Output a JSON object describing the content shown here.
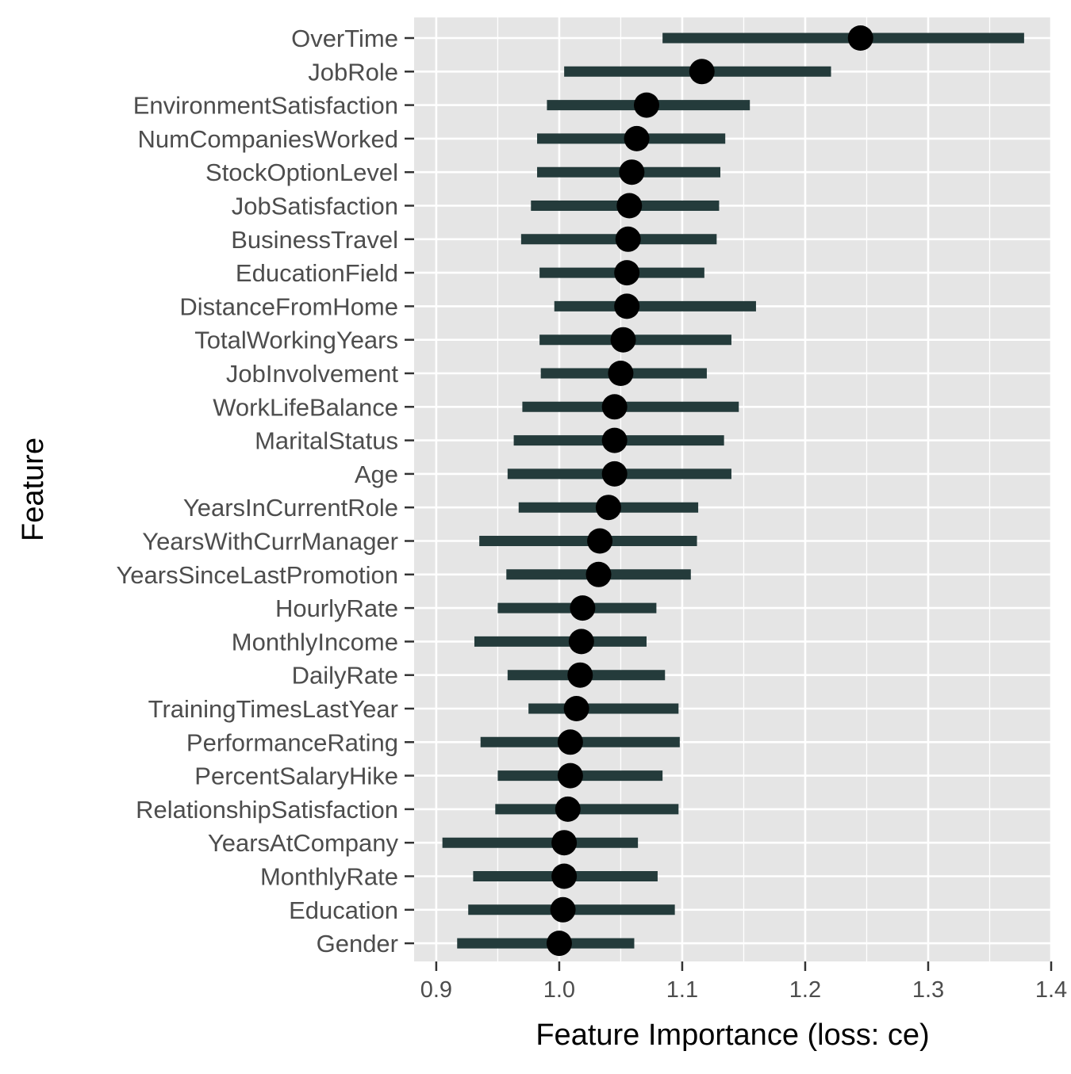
{
  "chart_data": {
    "type": "dot-interval",
    "title": "",
    "xlabel": "Feature Importance (loss: ce)",
    "ylabel": "Feature",
    "xlim": [
      0.882,
      1.4
    ],
    "x_ticks": [
      0.9,
      1.0,
      1.1,
      1.2,
      1.3,
      1.4
    ],
    "x_tick_labels": [
      "0.9",
      "1.0",
      "1.1",
      "1.2",
      "1.3",
      "1.4"
    ],
    "grid": true,
    "colors": {
      "panel_background": "#e5e5e5",
      "grid_line": "#ffffff",
      "interval": "#243b3b",
      "point": "#000000"
    },
    "series": [
      {
        "feature": "OverTime",
        "importance": 1.245,
        "low": 1.084,
        "high": 1.378
      },
      {
        "feature": "JobRole",
        "importance": 1.116,
        "low": 1.004,
        "high": 1.221
      },
      {
        "feature": "EnvironmentSatisfaction",
        "importance": 1.071,
        "low": 0.99,
        "high": 1.155
      },
      {
        "feature": "NumCompaniesWorked",
        "importance": 1.063,
        "low": 0.982,
        "high": 1.135
      },
      {
        "feature": "StockOptionLevel",
        "importance": 1.059,
        "low": 0.982,
        "high": 1.131
      },
      {
        "feature": "JobSatisfaction",
        "importance": 1.057,
        "low": 0.977,
        "high": 1.13
      },
      {
        "feature": "BusinessTravel",
        "importance": 1.056,
        "low": 0.969,
        "high": 1.128
      },
      {
        "feature": "EducationField",
        "importance": 1.055,
        "low": 0.984,
        "high": 1.118
      },
      {
        "feature": "DistanceFromHome",
        "importance": 1.055,
        "low": 0.996,
        "high": 1.16
      },
      {
        "feature": "TotalWorkingYears",
        "importance": 1.052,
        "low": 0.984,
        "high": 1.14
      },
      {
        "feature": "JobInvolvement",
        "importance": 1.05,
        "low": 0.985,
        "high": 1.12
      },
      {
        "feature": "WorkLifeBalance",
        "importance": 1.045,
        "low": 0.97,
        "high": 1.146
      },
      {
        "feature": "MaritalStatus",
        "importance": 1.045,
        "low": 0.963,
        "high": 1.134
      },
      {
        "feature": "Age",
        "importance": 1.045,
        "low": 0.958,
        "high": 1.14
      },
      {
        "feature": "YearsInCurrentRole",
        "importance": 1.04,
        "low": 0.967,
        "high": 1.113
      },
      {
        "feature": "YearsWithCurrManager",
        "importance": 1.033,
        "low": 0.935,
        "high": 1.112
      },
      {
        "feature": "YearsSinceLastPromotion",
        "importance": 1.032,
        "low": 0.957,
        "high": 1.107
      },
      {
        "feature": "HourlyRate",
        "importance": 1.019,
        "low": 0.95,
        "high": 1.079
      },
      {
        "feature": "MonthlyIncome",
        "importance": 1.018,
        "low": 0.931,
        "high": 1.071
      },
      {
        "feature": "DailyRate",
        "importance": 1.017,
        "low": 0.958,
        "high": 1.086
      },
      {
        "feature": "TrainingTimesLastYear",
        "importance": 1.014,
        "low": 0.975,
        "high": 1.097
      },
      {
        "feature": "PerformanceRating",
        "importance": 1.009,
        "low": 0.936,
        "high": 1.098
      },
      {
        "feature": "PercentSalaryHike",
        "importance": 1.009,
        "low": 0.95,
        "high": 1.084
      },
      {
        "feature": "RelationshipSatisfaction",
        "importance": 1.007,
        "low": 0.948,
        "high": 1.097
      },
      {
        "feature": "YearsAtCompany",
        "importance": 1.004,
        "low": 0.905,
        "high": 1.064
      },
      {
        "feature": "MonthlyRate",
        "importance": 1.004,
        "low": 0.93,
        "high": 1.08
      },
      {
        "feature": "Education",
        "importance": 1.003,
        "low": 0.926,
        "high": 1.094
      },
      {
        "feature": "Gender",
        "importance": 1.0,
        "low": 0.917,
        "high": 1.061
      }
    ]
  }
}
